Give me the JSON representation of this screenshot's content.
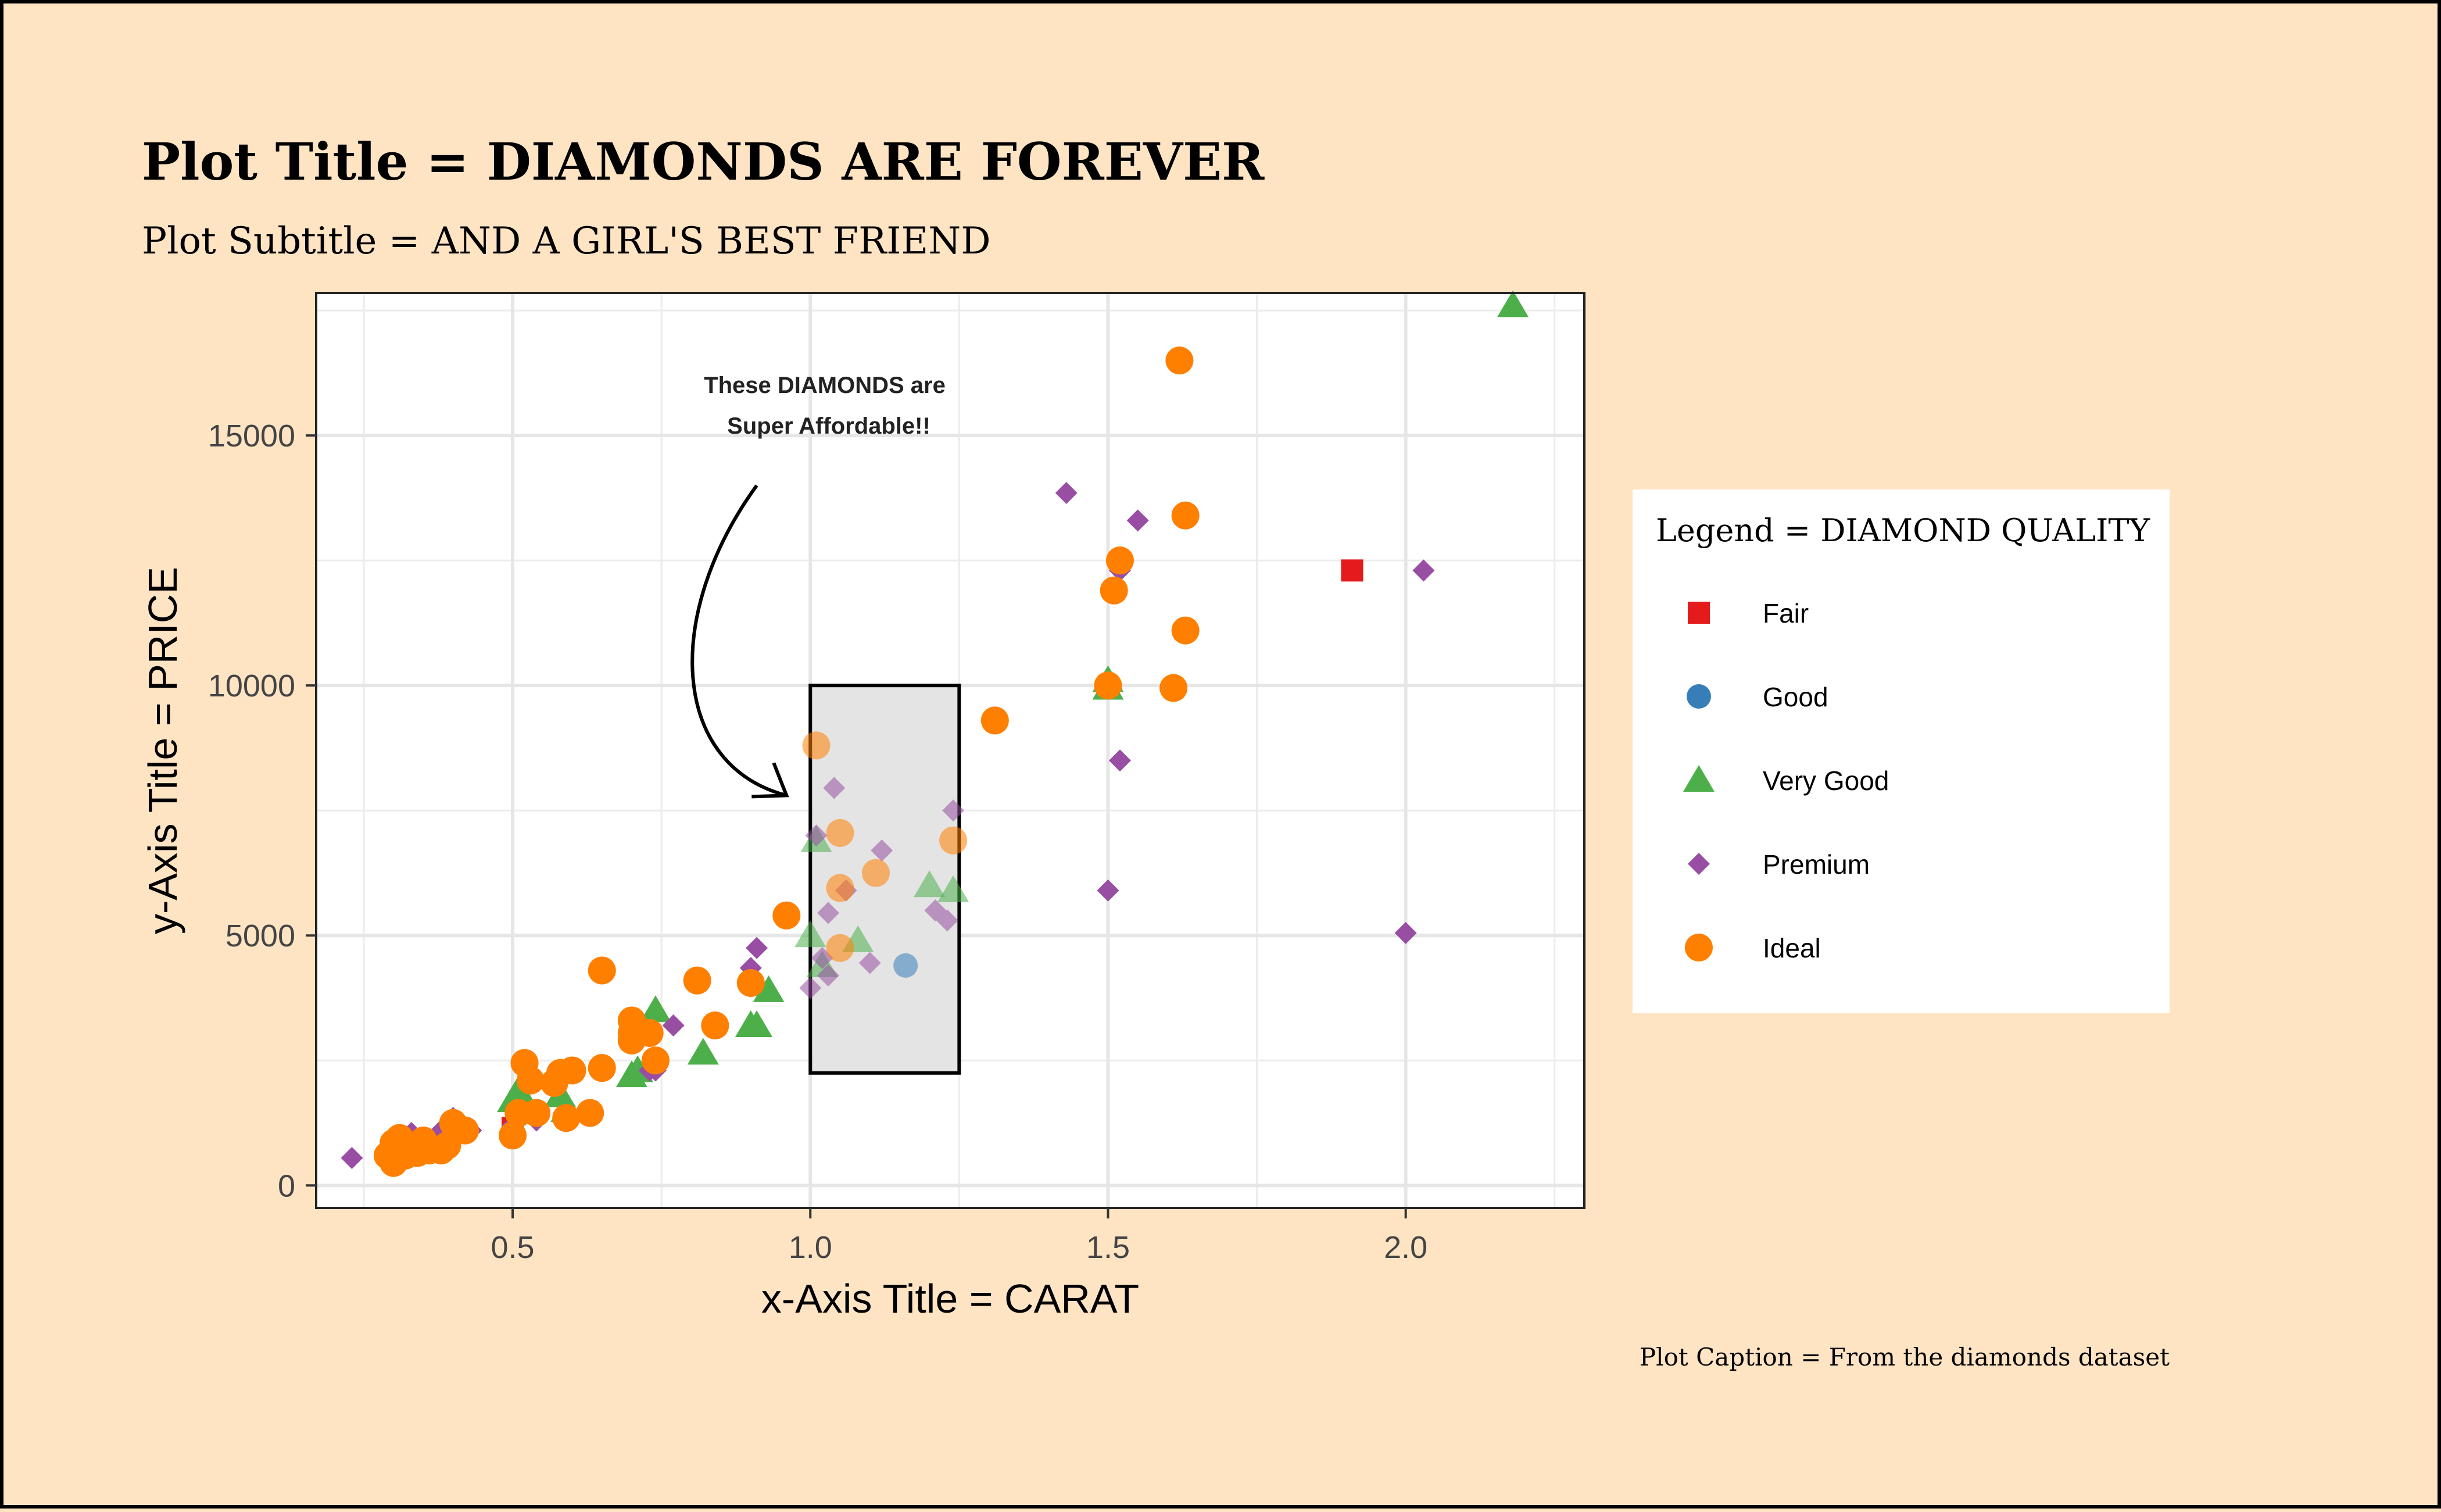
{
  "chart_data": {
    "type": "scatter",
    "title": "Plot Title = DIAMONDS ARE FOREVER",
    "subtitle": "Plot Subtitle = AND A GIRL'S BEST FRIEND",
    "xlabel": "x-Axis Title = CARAT",
    "ylabel": "y-Axis Title = PRICE",
    "caption": "Plot Caption = From the diamonds dataset",
    "xlim": [
      0.17,
      2.3
    ],
    "ylim": [
      -450,
      17850
    ],
    "xticks": [
      0.5,
      1.0,
      1.5,
      2.0
    ],
    "xtick_labels": [
      "0.5",
      "1.0",
      "1.5",
      "2.0"
    ],
    "yticks": [
      0,
      5000,
      10000,
      15000
    ],
    "ytick_labels": [
      "0",
      "5000",
      "10000",
      "15000"
    ],
    "grid": true,
    "legend": {
      "title": "Legend = DIAMOND QUALITY",
      "placement": "right",
      "entries": [
        {
          "label": "Fair",
          "shape": "square",
          "color": "#e41a1c"
        },
        {
          "label": "Good",
          "shape": "circle",
          "color": "#377eb8"
        },
        {
          "label": "Very Good",
          "shape": "triangle",
          "color": "#4daf4a"
        },
        {
          "label": "Premium",
          "shape": "diamond",
          "color": "#984ea3"
        },
        {
          "label": "Ideal",
          "shape": "circle",
          "color": "#ff7f00"
        }
      ]
    },
    "annotation": {
      "text_lines": [
        "These DIAMONDS are",
        "Super Affordable!!"
      ],
      "text_at": [
        1.0,
        16300
      ],
      "rect": {
        "xmin": 1.0,
        "xmax": 1.25,
        "ymin": 2250,
        "ymax": 10000
      },
      "arrow_from": [
        0.91,
        14000
      ],
      "arrow_to": [
        0.96,
        7800
      ]
    },
    "series": [
      {
        "name": "Fair",
        "points": [
          [
            0.5,
            1150
          ],
          [
            1.91,
            12300
          ]
        ]
      },
      {
        "name": "Good",
        "points": [
          [
            0.31,
            600
          ],
          [
            0.33,
            650
          ],
          [
            0.38,
            900
          ],
          [
            1.16,
            4400
          ]
        ]
      },
      {
        "name": "Very Good",
        "points": [
          [
            2.18,
            17600
          ],
          [
            1.5,
            10100
          ],
          [
            1.5,
            9950
          ],
          [
            1.01,
            6900
          ],
          [
            1.0,
            5000
          ],
          [
            1.02,
            4400
          ],
          [
            1.08,
            4900
          ],
          [
            1.2,
            6000
          ],
          [
            1.24,
            5900
          ],
          [
            0.93,
            3900
          ],
          [
            0.9,
            3200
          ],
          [
            0.91,
            3200
          ],
          [
            0.82,
            2650
          ],
          [
            0.74,
            3500
          ],
          [
            0.7,
            2200
          ],
          [
            0.71,
            2300
          ],
          [
            0.59,
            1500
          ],
          [
            0.58,
            1800
          ],
          [
            0.51,
            1900
          ],
          [
            0.5,
            1700
          ],
          [
            0.34,
            800
          ],
          [
            0.31,
            650
          ]
        ]
      },
      {
        "name": "Premium",
        "points": [
          [
            1.43,
            13850
          ],
          [
            1.55,
            13300
          ],
          [
            1.52,
            12300
          ],
          [
            2.03,
            12300
          ],
          [
            1.5,
            10050
          ],
          [
            1.52,
            8500
          ],
          [
            1.5,
            5900
          ],
          [
            2.0,
            5050
          ],
          [
            1.04,
            7950
          ],
          [
            1.24,
            7500
          ],
          [
            1.01,
            7000
          ],
          [
            1.12,
            6700
          ],
          [
            1.06,
            5900
          ],
          [
            1.03,
            5450
          ],
          [
            1.23,
            5300
          ],
          [
            1.21,
            5500
          ],
          [
            1.02,
            4550
          ],
          [
            1.1,
            4450
          ],
          [
            1.03,
            4200
          ],
          [
            1.0,
            3950
          ],
          [
            0.91,
            4750
          ],
          [
            0.9,
            4350
          ],
          [
            0.77,
            3200
          ],
          [
            0.73,
            2300
          ],
          [
            0.74,
            2300
          ],
          [
            0.59,
            1400
          ],
          [
            0.54,
            1300
          ],
          [
            0.5,
            1200
          ],
          [
            0.43,
            1100
          ],
          [
            0.4,
            1350
          ],
          [
            0.38,
            1100
          ],
          [
            0.33,
            1050
          ],
          [
            0.3,
            600
          ],
          [
            0.23,
            550
          ],
          [
            0.31,
            700
          ],
          [
            0.36,
            800
          ]
        ]
      },
      {
        "name": "Ideal",
        "points": [
          [
            1.62,
            16500
          ],
          [
            1.63,
            13400
          ],
          [
            1.52,
            12500
          ],
          [
            1.51,
            11900
          ],
          [
            1.63,
            11100
          ],
          [
            1.5,
            10000
          ],
          [
            1.61,
            9950
          ],
          [
            1.31,
            9300
          ],
          [
            1.01,
            8800
          ],
          [
            1.05,
            7050
          ],
          [
            1.24,
            6900
          ],
          [
            1.05,
            5950
          ],
          [
            1.11,
            6250
          ],
          [
            1.05,
            4750
          ],
          [
            0.96,
            5400
          ],
          [
            0.9,
            4050
          ],
          [
            0.81,
            4100
          ],
          [
            0.84,
            3200
          ],
          [
            0.65,
            4300
          ],
          [
            0.7,
            3300
          ],
          [
            0.7,
            3050
          ],
          [
            0.7,
            2900
          ],
          [
            0.73,
            3050
          ],
          [
            0.74,
            2500
          ],
          [
            0.65,
            2350
          ],
          [
            0.63,
            1450
          ],
          [
            0.6,
            2300
          ],
          [
            0.58,
            2250
          ],
          [
            0.57,
            2050
          ],
          [
            0.53,
            2100
          ],
          [
            0.52,
            2450
          ],
          [
            0.51,
            1450
          ],
          [
            0.5,
            1000
          ],
          [
            0.54,
            1450
          ],
          [
            0.59,
            1350
          ],
          [
            0.42,
            1100
          ],
          [
            0.4,
            1250
          ],
          [
            0.39,
            800
          ],
          [
            0.38,
            700
          ],
          [
            0.36,
            700
          ],
          [
            0.35,
            900
          ],
          [
            0.34,
            650
          ],
          [
            0.33,
            800
          ],
          [
            0.32,
            600
          ],
          [
            0.31,
            950
          ],
          [
            0.3,
            850
          ],
          [
            0.3,
            500
          ],
          [
            0.29,
            600
          ],
          [
            0.3,
            450
          ]
        ]
      }
    ]
  }
}
